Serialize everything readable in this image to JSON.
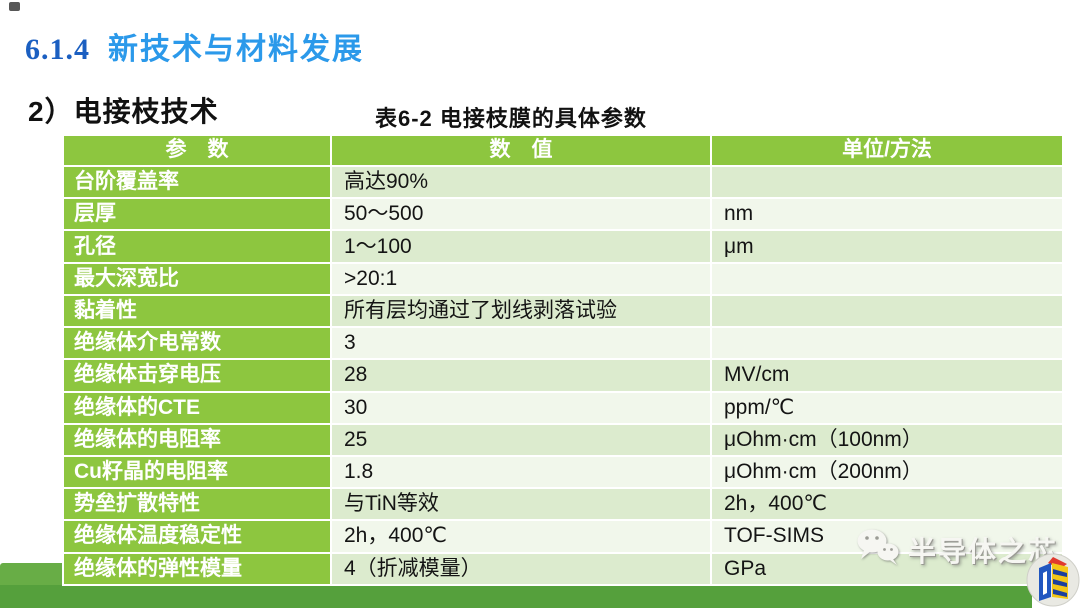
{
  "slide": {
    "section_number": "6.1.4",
    "section_title": "新技术与材料发展",
    "subsection_title": "2）电接枝技术",
    "table_caption": "表6-2  电接枝膜的具体参数"
  },
  "table": {
    "headers": [
      "参　数",
      "数　值",
      "单位/方法"
    ],
    "rows": [
      {
        "param": "台阶覆盖率",
        "value": "高达90%",
        "unit": ""
      },
      {
        "param": "层厚",
        "value": "50～500",
        "unit": "nm"
      },
      {
        "param": "孔径",
        "value": "1～100",
        "unit": "μm"
      },
      {
        "param": "最大深宽比",
        "value": ">20:1",
        "unit": ""
      },
      {
        "param": "黏着性",
        "value": "所有层均通过了划线剥落试验",
        "unit": ""
      },
      {
        "param": "绝缘体介电常数",
        "value": "3",
        "unit": ""
      },
      {
        "param": "绝缘体击穿电压",
        "value": "28",
        "unit": "MV/cm"
      },
      {
        "param": "绝缘体的CTE",
        "value": "30",
        "unit": "ppm/℃"
      },
      {
        "param": "绝缘体的电阻率",
        "value": "25",
        "unit": "μOhm·cm（100nm）"
      },
      {
        "param": "Cu籽晶的电阻率",
        "value": "1.8",
        "unit": "μOhm·cm（200nm）"
      },
      {
        "param": "势垒扩散特性",
        "value": "与TiN等效",
        "unit": "2h，400℃"
      },
      {
        "param": "绝缘体温度稳定性",
        "value": "2h，400℃",
        "unit": "TOF-SIMS"
      },
      {
        "param": "绝缘体的弹性模量",
        "value": "4（折减模量）",
        "unit": "GPa"
      }
    ]
  },
  "watermark": {
    "text": "半导体之芯",
    "icon": "wechat-icon"
  },
  "colors": {
    "table_green": "#8dc63f",
    "row_odd_green": "#dcebce",
    "row_even_white": "#f1f7eb",
    "bottom_bar_dark": "#55a03c",
    "bottom_band_light": "#68ad46",
    "section_number_blue": "#1b5fc1",
    "section_title_blue": "#2b99ea"
  }
}
